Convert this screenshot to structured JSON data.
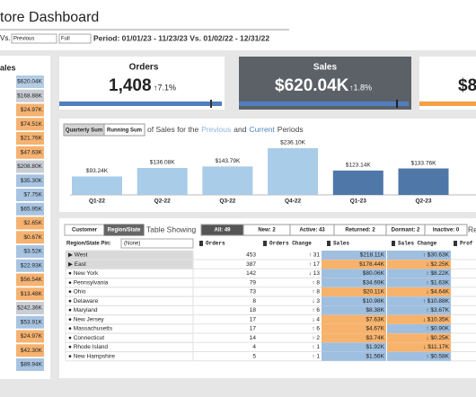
{
  "header": {
    "title": "tore Dashboard",
    "vs": "Vs.",
    "compare_select": "Previous",
    "range_select": "Full",
    "period": "Period: 01/01/23 - 11/23/23 Vs. 01/02/22 - 12/31/22"
  },
  "left_panel": {
    "title": "ales",
    "rows": [
      {
        "value": "$620.04K",
        "color": "#b4cce4"
      },
      {
        "value": "$168.88K",
        "color": "#c9cdd4"
      },
      {
        "value": "$24.97K",
        "color": "#f5b270"
      },
      {
        "value": "$74.51K",
        "color": "#f5b270"
      },
      {
        "value": "$21.76K",
        "color": "#f5b270"
      },
      {
        "value": "$47.63K",
        "color": "#f5b270"
      },
      {
        "value": "$208.80K",
        "color": "#c9cdd4"
      },
      {
        "value": "$35.30K",
        "color": "#a8c4e2"
      },
      {
        "value": "$7.75K",
        "color": "#a8c4e2"
      },
      {
        "value": "$65.95K",
        "color": "#a8c4e2"
      },
      {
        "value": "$2.65K",
        "color": "#f5b270"
      },
      {
        "value": "$0.67K",
        "color": "#f5b270"
      },
      {
        "value": "$3.52K",
        "color": "#a8c4e2"
      },
      {
        "value": "$22.93K",
        "color": "#a8c4e2"
      },
      {
        "value": "$56.54K",
        "color": "#f5b270"
      },
      {
        "value": "$13.48K",
        "color": "#f5b270"
      },
      {
        "value": "$242.36K",
        "color": "#c9cdd4"
      },
      {
        "value": "$53.91K",
        "color": "#a8c4e2"
      },
      {
        "value": "$24.97K",
        "color": "#f5b270"
      },
      {
        "value": "$42.30K",
        "color": "#f5b270"
      },
      {
        "value": "$89.94K",
        "color": "#a8c4e2"
      }
    ]
  },
  "kpis": [
    {
      "title": "Orders",
      "value": "1,408",
      "change": "↑7.1%"
    },
    {
      "title": "Sales",
      "value": "$620.04K",
      "change": "↑1.8%"
    },
    {
      "value": "$8"
    }
  ],
  "chart_data": {
    "type": "bar",
    "toggles": [
      "Quarterly Sum",
      "Running Sum"
    ],
    "title_parts": [
      "of Sales for the",
      "Previous",
      "and",
      "Current",
      "Periods"
    ],
    "categories": [
      "Q1-22",
      "Q2-22",
      "Q3-22",
      "Q4-22",
      "Q1-23",
      "Q2-23"
    ],
    "values": [
      93.24,
      136.08,
      143.79,
      236.1,
      123.14,
      133.76
    ],
    "value_labels": [
      "$93.24K",
      "$136.08K",
      "$143.79K",
      "$236.10K",
      "$123.14K",
      "$133.76K"
    ],
    "colors": [
      "#a9cce9",
      "#a9cce9",
      "#a9cce9",
      "#a9cce9",
      "#4f77a8",
      "#4f77a8"
    ]
  },
  "table": {
    "tabs": [
      "Customer",
      "Region/State"
    ],
    "showing": "Table Showing",
    "filters": [
      "All: 49",
      "New: 2",
      "Active: 43",
      "Returned: 2",
      "Dormant: 2",
      "Inactive: 0"
    ],
    "cropped_label": "Re",
    "pin_label": "Region/State Pin:",
    "pin_select": "(None)",
    "columns": [
      "Orders",
      "Orders Change",
      "Sales",
      "Sales Change",
      "Prof"
    ],
    "rows": [
      {
        "name": "▶ West",
        "orders": "453",
        "orders_change": "↑ 31",
        "sales": "$218.11K",
        "sales_change": "↑ $30.63K",
        "sales_color": "#9fbfe0",
        "change_color": "#9fbfe0"
      },
      {
        "name": "▶ East",
        "orders": "387",
        "orders_change": "↑ 17",
        "sales": "$178.44K",
        "sales_change": "↓ $2.25K",
        "sales_color": "#f7b26b",
        "change_color": "#f7b26b"
      },
      {
        "name": "● New York",
        "orders": "142",
        "orders_change": "↓ 13",
        "sales": "$80.06K",
        "sales_change": "↑ $8.22K",
        "sales_color": "#9fbfe0",
        "change_color": "#9fbfe0"
      },
      {
        "name": "● Pennsylvania",
        "orders": "79",
        "orders_change": "↑ 8",
        "sales": "$34.69K",
        "sales_change": "↑ $1.63K",
        "sales_color": "#9fbfe0",
        "change_color": "#9fbfe0"
      },
      {
        "name": "● Ohio",
        "orders": "73",
        "orders_change": "↑ 8",
        "sales": "$20.11K",
        "sales_change": "↓ $4.64K",
        "sales_color": "#f7b26b",
        "change_color": "#f7b26b"
      },
      {
        "name": "● Delaware",
        "orders": "8",
        "orders_change": "↓ 3",
        "sales": "$10.98K",
        "sales_change": "↑ $10.88K",
        "sales_color": "#9fbfe0",
        "change_color": "#9fbfe0"
      },
      {
        "name": "● Maryland",
        "orders": "18",
        "orders_change": "↑ 6",
        "sales": "$8.38K",
        "sales_change": "↑ $3.67K",
        "sales_color": "#9fbfe0",
        "change_color": "#9fbfe0"
      },
      {
        "name": "● New Jersey",
        "orders": "17",
        "orders_change": "↓ 4",
        "sales": "$7.63K",
        "sales_change": "↓ $10.35K",
        "sales_color": "#f7b26b",
        "change_color": "#f7b26b"
      },
      {
        "name": "● Massachusetts",
        "orders": "17",
        "orders_change": "↑ 6",
        "sales": "$4.67K",
        "sales_change": "↑ $0.90K",
        "sales_color": "#f7b26b",
        "change_color": "#9fbfe0"
      },
      {
        "name": "● Connecticut",
        "orders": "14",
        "orders_change": "↑ 2",
        "sales": "$3.74K",
        "sales_change": "↓ $0.25K",
        "sales_color": "#f7b26b",
        "change_color": "#f7b26b"
      },
      {
        "name": "● Rhode Island",
        "orders": "4",
        "orders_change": "↑ 1",
        "sales": "$1.92K",
        "sales_change": "↓ $11.17K",
        "sales_color": "#9fbfe0",
        "change_color": "#f7b26b"
      },
      {
        "name": "● New Hampshire",
        "orders": "5",
        "orders_change": "↑ 1",
        "sales": "$1.56K",
        "sales_change": "↑ $0.58K",
        "sales_color": "#9fbfe0",
        "change_color": "#9fbfe0"
      }
    ]
  }
}
